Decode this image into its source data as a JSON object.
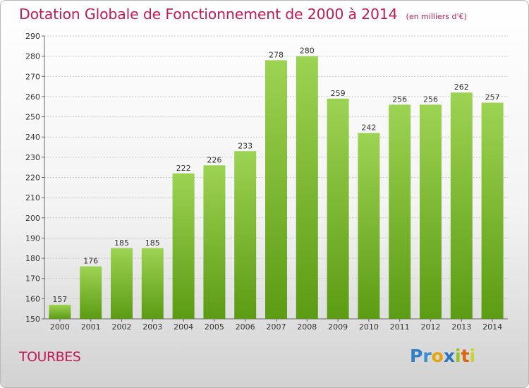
{
  "chart_data": {
    "type": "bar",
    "title": "Dotation Globale de Fonctionnement de 2000 à 2014",
    "subtitle": "(en milliers d'€)",
    "categories": [
      "2000",
      "2001",
      "2002",
      "2003",
      "2004",
      "2005",
      "2006",
      "2007",
      "2008",
      "2009",
      "2010",
      "2011",
      "2012",
      "2013",
      "2014"
    ],
    "values": [
      157,
      176,
      185,
      185,
      222,
      226,
      233,
      278,
      280,
      259,
      242,
      256,
      256,
      262,
      257
    ],
    "ylim": [
      150,
      290
    ],
    "yticks": [
      150,
      160,
      170,
      180,
      190,
      200,
      210,
      220,
      230,
      240,
      250,
      260,
      270,
      280,
      290
    ],
    "grid": true,
    "bar_color_top": "#9dd353",
    "bar_color_bottom": "#5c9b14"
  },
  "commune": "TOURBES",
  "logo": "Proxiti",
  "colors": {
    "title": "#c21b5a",
    "axis_text": "#333333",
    "grid": "#c8c8c8"
  }
}
